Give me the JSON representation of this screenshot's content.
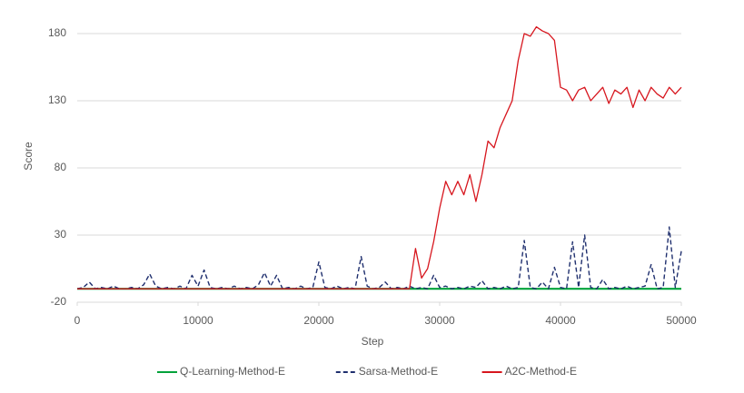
{
  "chart_data": {
    "type": "line",
    "xlabel": "Step",
    "ylabel": "Score",
    "x": [
      0,
      500,
      1000,
      1500,
      2000,
      2500,
      3000,
      3500,
      4000,
      4500,
      5000,
      5500,
      6000,
      6500,
      7000,
      7500,
      8000,
      8500,
      9000,
      9500,
      10000,
      10500,
      11000,
      11500,
      12000,
      12500,
      13000,
      13500,
      14000,
      14500,
      15000,
      15500,
      16000,
      16500,
      17000,
      17500,
      18000,
      18500,
      19000,
      19500,
      20000,
      20500,
      21000,
      21500,
      22000,
      22500,
      23000,
      23500,
      24000,
      24500,
      25000,
      25500,
      26000,
      26500,
      27000,
      27500,
      28000,
      28500,
      29000,
      29500,
      30000,
      30500,
      31000,
      31500,
      32000,
      32500,
      33000,
      33500,
      34000,
      34500,
      35000,
      35500,
      36000,
      36500,
      37000,
      37500,
      38000,
      38500,
      39000,
      39500,
      40000,
      40500,
      41000,
      41500,
      42000,
      42500,
      43000,
      43500,
      44000,
      44500,
      45000,
      45500,
      46000,
      46500,
      47000,
      47500,
      48000,
      48500,
      49000,
      49500,
      50000
    ],
    "series": [
      {
        "name": "Q-Learning-Method-E",
        "color": "#00a23a",
        "line_style": "solid",
        "values": [
          -10,
          -10,
          -10,
          -10,
          -10,
          -10,
          -10,
          -10,
          -10,
          -10,
          -10,
          -10,
          -10,
          -10,
          -10,
          -10,
          -10,
          -10,
          -10,
          -10,
          -10,
          -10,
          -10,
          -10,
          -10,
          -10,
          -10,
          -10,
          -10,
          -10,
          -10,
          -10,
          -10,
          -10,
          -10,
          -10,
          -10,
          -10,
          -10,
          -10,
          -10,
          -10,
          -10,
          -10,
          -10,
          -10,
          -10,
          -10,
          -10,
          -10,
          -10,
          -10,
          -10,
          -10,
          -10,
          -10,
          -10,
          -10,
          -10,
          -10,
          -10,
          -10,
          -10,
          -10,
          -10,
          -10,
          -10,
          -10,
          -10,
          -10,
          -10,
          -10,
          -10,
          -10,
          -10,
          -10,
          -10,
          -10,
          -10,
          -10,
          -10,
          -10,
          -10,
          -10,
          -10,
          -10,
          -10,
          -10,
          -10,
          -10,
          -10,
          -10,
          -10,
          -10,
          -10,
          -10,
          -10,
          -10,
          -10,
          -10,
          -10
        ]
      },
      {
        "name": "Sarsa-Method-E",
        "color": "#1f2f6e",
        "line_style": "dashed",
        "values": [
          -10,
          -9,
          -5,
          -10,
          -9,
          -10,
          -8,
          -10,
          -10,
          -9,
          -10,
          -7,
          1,
          -8,
          -10,
          -9,
          -10,
          -8,
          -10,
          0,
          -8,
          4,
          -9,
          -10,
          -9,
          -10,
          -8,
          -10,
          -9,
          -10,
          -7,
          2,
          -8,
          0,
          -10,
          -9,
          -10,
          -8,
          -10,
          -9,
          10,
          -9,
          -10,
          -8,
          -10,
          -9,
          -10,
          14,
          -8,
          -10,
          -9,
          -5,
          -10,
          -9,
          -10,
          -8,
          -10,
          -9,
          -10,
          0,
          -9,
          -8,
          -10,
          -9,
          -10,
          -8,
          -9,
          -4,
          -10,
          -9,
          -10,
          -8,
          -10,
          -9,
          26,
          -9,
          -10,
          -5,
          -10,
          6,
          -9,
          -10,
          25,
          -9,
          30,
          -9,
          -10,
          -3,
          -10,
          -9,
          -10,
          -8,
          -10,
          -9,
          -8,
          8,
          -10,
          -9,
          36,
          -9,
          18
        ]
      },
      {
        "name": "A2C-Method-E",
        "color": "#d7161e",
        "line_style": "solid",
        "values": [
          -10,
          -10,
          -10,
          -10,
          -10,
          -10,
          -10,
          -10,
          -10,
          -10,
          -10,
          -10,
          -10,
          -10,
          -10,
          -10,
          -10,
          -10,
          -10,
          -10,
          -10,
          -10,
          -10,
          -10,
          -10,
          -10,
          -10,
          -10,
          -10,
          -10,
          -10,
          -10,
          -10,
          -10,
          -10,
          -10,
          -10,
          -10,
          -10,
          -10,
          -10,
          -10,
          -10,
          -10,
          -10,
          -10,
          -10,
          -10,
          -10,
          -10,
          -10,
          -10,
          -10,
          -10,
          -10,
          -10,
          20,
          -2,
          5,
          25,
          50,
          70,
          60,
          70,
          60,
          75,
          55,
          75,
          100,
          95,
          110,
          120,
          130,
          160,
          180,
          178,
          185,
          182,
          180,
          175,
          140,
          138,
          130,
          138,
          140,
          130,
          135,
          140,
          128,
          138,
          135,
          140,
          125,
          138,
          130,
          140,
          135,
          132,
          140,
          135,
          140
        ]
      }
    ],
    "xlim": [
      0,
      50000
    ],
    "xticks": [
      0,
      10000,
      20000,
      30000,
      40000,
      50000
    ],
    "ylim": [
      -20,
      200
    ],
    "yticks": [
      -20,
      30,
      80,
      130,
      180
    ],
    "grid": true,
    "legend": "bottom"
  }
}
